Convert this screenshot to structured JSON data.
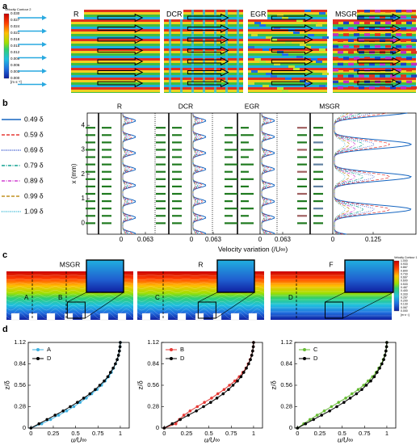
{
  "panel_labels": [
    "a",
    "b",
    "c",
    "d"
  ],
  "panel_a": {
    "colorbar": {
      "title": "Velocity Contour 2",
      "ticks": [
        "0.030",
        "0.027",
        "0.024",
        "0.021",
        "0.018",
        "0.015",
        "0.012",
        "0.009",
        "0.006",
        "0.003",
        "0.000"
      ],
      "unit": "[m s⁻¹]"
    },
    "surfaces": [
      "R",
      "DCR",
      "EGR",
      "MSGR"
    ]
  },
  "panel_b": {
    "titles": [
      "R",
      "DCR",
      "EGR",
      "MSGR"
    ],
    "legend": [
      {
        "name": "0.49 δ",
        "color": "#1565c0",
        "dash": "solid"
      },
      {
        "name": "0.59 δ",
        "color": "#e53935",
        "dash": "dashed"
      },
      {
        "name": "0.69 δ",
        "color": "#1e40c8",
        "dash": "dotted"
      },
      {
        "name": "0.79 δ",
        "color": "#10a090",
        "dash": "dashdot"
      },
      {
        "name": "0.89 δ",
        "color": "#d040d0",
        "dash": "dashdot"
      },
      {
        "name": "0.99 δ",
        "color": "#c09020",
        "dash": "dashed"
      },
      {
        "name": "1.09 δ",
        "color": "#20b0d0",
        "dash": "dotted"
      }
    ],
    "ylabel": "x (mm)",
    "ylim": [
      -0.45,
      4.5
    ],
    "yticks": [
      0,
      1,
      2,
      3,
      4
    ],
    "xtick_labels": [
      "0",
      "0.063",
      "0",
      "0.063",
      "0",
      "0.063",
      "0",
      "0.125"
    ],
    "xlabel": "Velocity variation (/U∞)"
  },
  "panel_c": {
    "titles": [
      "MSGR",
      "R",
      "F"
    ],
    "labels": [
      [
        "A",
        "B"
      ],
      [
        "C"
      ],
      [
        "D"
      ]
    ],
    "colorbar": {
      "title": "Velocity Contour 1",
      "ticks": [
        "1.000",
        "0.933",
        "0.867",
        "0.800",
        "0.733",
        "0.667",
        "0.600",
        "0.533",
        "0.467",
        "0.400",
        "0.333",
        "0.267",
        "0.200",
        "0.133",
        "0.067",
        "0.000"
      ],
      "unit": "[m s⁻¹]"
    }
  },
  "chart_data": [
    {
      "type": "line",
      "xlabel": "u/U∞",
      "ylabel": "z/δ",
      "xlim": [
        -0.03,
        1.1
      ],
      "ylim": [
        0,
        1.12
      ],
      "xticks": [
        0,
        0.25,
        0.5,
        0.75,
        1
      ],
      "yticks": [
        0,
        0.28,
        0.56,
        0.84,
        1.12
      ],
      "series": [
        {
          "name": "A",
          "color": "#3fb0e0",
          "x": [
            0,
            0.12,
            0.22,
            0.31,
            0.4,
            0.48,
            0.55,
            0.62,
            0.68,
            0.74,
            0.79,
            0.83,
            0.87,
            0.9,
            0.925,
            0.947,
            0.966,
            0.98,
            0.99,
            0.997,
            1.0
          ],
          "values": [
            0,
            0.056,
            0.112,
            0.168,
            0.224,
            0.28,
            0.336,
            0.392,
            0.448,
            0.504,
            0.56,
            0.616,
            0.672,
            0.728,
            0.784,
            0.84,
            0.896,
            0.952,
            1.008,
            1.064,
            1.12
          ]
        },
        {
          "name": "D",
          "color": "#000000",
          "x": [
            0,
            0.09,
            0.18,
            0.27,
            0.36,
            0.44,
            0.52,
            0.59,
            0.66,
            0.72,
            0.77,
            0.82,
            0.86,
            0.89,
            0.92,
            0.945,
            0.965,
            0.98,
            0.99,
            0.997,
            1.0
          ],
          "values": [
            0,
            0.056,
            0.112,
            0.168,
            0.224,
            0.28,
            0.336,
            0.392,
            0.448,
            0.504,
            0.56,
            0.616,
            0.672,
            0.728,
            0.784,
            0.84,
            0.896,
            0.952,
            1.008,
            1.064,
            1.12
          ]
        }
      ]
    },
    {
      "type": "line",
      "xlabel": "u/U∞",
      "ylabel": "z/δ",
      "xlim": [
        -0.03,
        1.1
      ],
      "ylim": [
        0,
        1.12
      ],
      "xticks": [
        0,
        0.25,
        0.5,
        0.75,
        1
      ],
      "yticks": [
        0,
        0.28,
        0.56,
        0.84,
        1.12
      ],
      "series": [
        {
          "name": "B",
          "color": "#e53935",
          "x": [
            0,
            0.13,
            0.17,
            0.22,
            0.29,
            0.37,
            0.45,
            0.53,
            0.6,
            0.67,
            0.73,
            0.79,
            0.84,
            0.88,
            0.915,
            0.94,
            0.962,
            0.978,
            0.99,
            0.997,
            1.0
          ],
          "values": [
            0,
            0.056,
            0.112,
            0.168,
            0.224,
            0.28,
            0.336,
            0.392,
            0.448,
            0.504,
            0.56,
            0.616,
            0.672,
            0.728,
            0.784,
            0.84,
            0.896,
            0.952,
            1.008,
            1.064,
            1.12
          ]
        },
        {
          "name": "D",
          "color": "#000000",
          "x": [
            0,
            0.09,
            0.18,
            0.27,
            0.36,
            0.44,
            0.52,
            0.59,
            0.66,
            0.72,
            0.77,
            0.82,
            0.86,
            0.89,
            0.92,
            0.945,
            0.965,
            0.98,
            0.99,
            0.997,
            1.0
          ],
          "values": [
            0,
            0.056,
            0.112,
            0.168,
            0.224,
            0.28,
            0.336,
            0.392,
            0.448,
            0.504,
            0.56,
            0.616,
            0.672,
            0.728,
            0.784,
            0.84,
            0.896,
            0.952,
            1.008,
            1.064,
            1.12
          ]
        }
      ]
    },
    {
      "type": "line",
      "xlabel": "u/U∞",
      "ylabel": "z/δ",
      "xlim": [
        -0.03,
        1.1
      ],
      "ylim": [
        0,
        1.12
      ],
      "xticks": [
        0,
        0.25,
        0.5,
        0.75,
        1
      ],
      "yticks": [
        0,
        0.28,
        0.56,
        0.84,
        1.12
      ],
      "series": [
        {
          "name": "C",
          "color": "#66bb33",
          "x": [
            0,
            0.07,
            0.14,
            0.22,
            0.3,
            0.38,
            0.46,
            0.54,
            0.61,
            0.68,
            0.74,
            0.79,
            0.84,
            0.88,
            0.91,
            0.94,
            0.96,
            0.977,
            0.99,
            0.997,
            1.0
          ],
          "values": [
            0,
            0.056,
            0.112,
            0.168,
            0.224,
            0.28,
            0.336,
            0.392,
            0.448,
            0.504,
            0.56,
            0.616,
            0.672,
            0.728,
            0.784,
            0.84,
            0.896,
            0.952,
            1.008,
            1.064,
            1.12
          ]
        },
        {
          "name": "D",
          "color": "#000000",
          "x": [
            0,
            0.09,
            0.18,
            0.27,
            0.36,
            0.44,
            0.52,
            0.59,
            0.66,
            0.72,
            0.77,
            0.82,
            0.86,
            0.89,
            0.92,
            0.945,
            0.965,
            0.98,
            0.99,
            0.997,
            1.0
          ],
          "values": [
            0,
            0.056,
            0.112,
            0.168,
            0.224,
            0.28,
            0.336,
            0.392,
            0.448,
            0.504,
            0.56,
            0.616,
            0.672,
            0.728,
            0.784,
            0.84,
            0.896,
            0.952,
            1.008,
            1.064,
            1.12
          ]
        }
      ]
    }
  ]
}
